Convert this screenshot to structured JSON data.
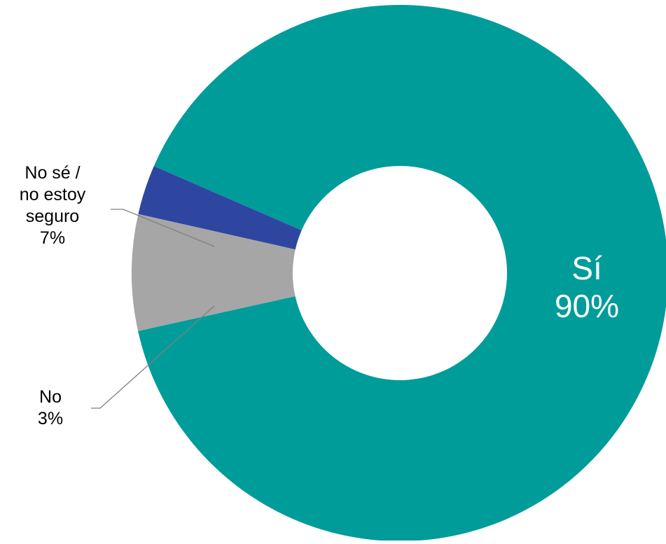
{
  "chart_data": {
    "type": "pie",
    "donut": true,
    "slices": [
      {
        "label": "Sí",
        "value": 90,
        "value_label": "90%",
        "color": "#009C99"
      },
      {
        "label": "No",
        "value": 3,
        "value_label": "3%",
        "color": "#2E46A0"
      },
      {
        "label_lines": [
          "No sé /",
          "no estoy",
          "seguro"
        ],
        "value": 7,
        "value_label": "7%",
        "color": "#A6A6A6"
      }
    ],
    "legend": "none",
    "label_style": "data labels with leader lines for small slices"
  },
  "labels": {
    "si": {
      "name": "Sí",
      "pct": "90%"
    },
    "no": {
      "name": "No",
      "pct": "3%"
    },
    "nose": {
      "line1": "No sé /",
      "line2": "no estoy",
      "line3": "seguro",
      "pct": "7%"
    }
  }
}
